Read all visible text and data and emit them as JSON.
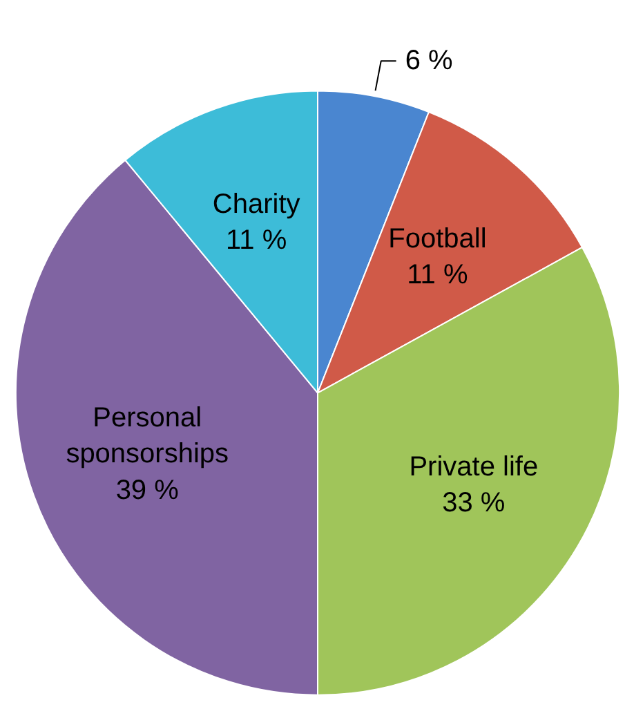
{
  "chart_data": {
    "type": "pie",
    "categories": [
      null,
      "Football",
      "Private life",
      "Personal sponsorships",
      "Charity"
    ],
    "values": [
      6,
      11,
      33,
      39,
      11
    ],
    "value_labels": [
      "6 %",
      "11 %",
      "33 %",
      "39 %",
      "11 %"
    ],
    "colors": [
      "#4a86d0",
      "#d05a48",
      "#a0c55a",
      "#8064a2",
      "#3dbcd8"
    ]
  }
}
